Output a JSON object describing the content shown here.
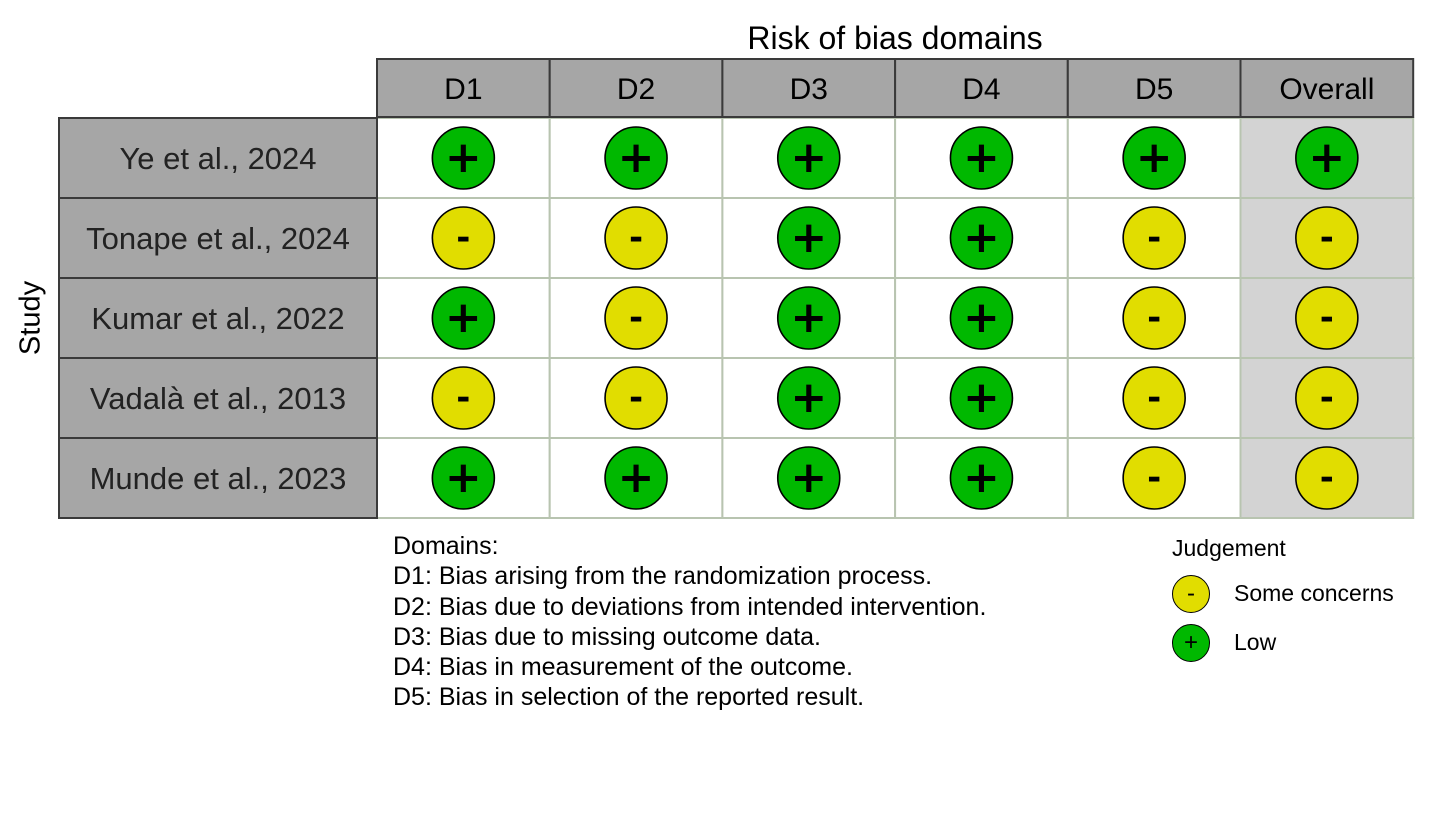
{
  "chart_data": {
    "type": "table",
    "title": "Risk of bias domains",
    "ylabel": "Study",
    "columns": [
      "D1",
      "D2",
      "D3",
      "D4",
      "D5",
      "Overall"
    ],
    "rows": [
      {
        "study": "Ye et al., 2024",
        "judgements": [
          "low",
          "low",
          "low",
          "low",
          "low",
          "low"
        ]
      },
      {
        "study": "Tonape et al., 2024",
        "judgements": [
          "some",
          "some",
          "low",
          "low",
          "some",
          "some"
        ]
      },
      {
        "study": "Kumar et al., 2022",
        "judgements": [
          "low",
          "some",
          "low",
          "low",
          "some",
          "some"
        ]
      },
      {
        "study": "Vadalà et al., 2013",
        "judgements": [
          "some",
          "some",
          "low",
          "low",
          "some",
          "some"
        ]
      },
      {
        "study": "Munde et al., 2023",
        "judgements": [
          "low",
          "low",
          "low",
          "low",
          "some",
          "some"
        ]
      }
    ],
    "symbols": {
      "low": "+",
      "some": "-"
    },
    "colors": {
      "low": "#00b800",
      "some": "#e1dd00",
      "header_fill": "#a6a6a6",
      "overall_fill": "#d3d3d3",
      "cell_border": "#b8c4b0"
    }
  },
  "domains": {
    "heading": "Domains:",
    "items": [
      "D1: Bias arising from the randomization process.",
      "D2: Bias due to deviations from intended intervention.",
      "D3: Bias due to missing outcome data.",
      "D4: Bias in measurement of the outcome.",
      "D5: Bias in selection of the reported result."
    ]
  },
  "legend": {
    "title": "Judgement",
    "items": [
      {
        "key": "some",
        "symbol": "-",
        "label": "Some concerns"
      },
      {
        "key": "low",
        "symbol": "+",
        "label": "Low"
      }
    ]
  }
}
